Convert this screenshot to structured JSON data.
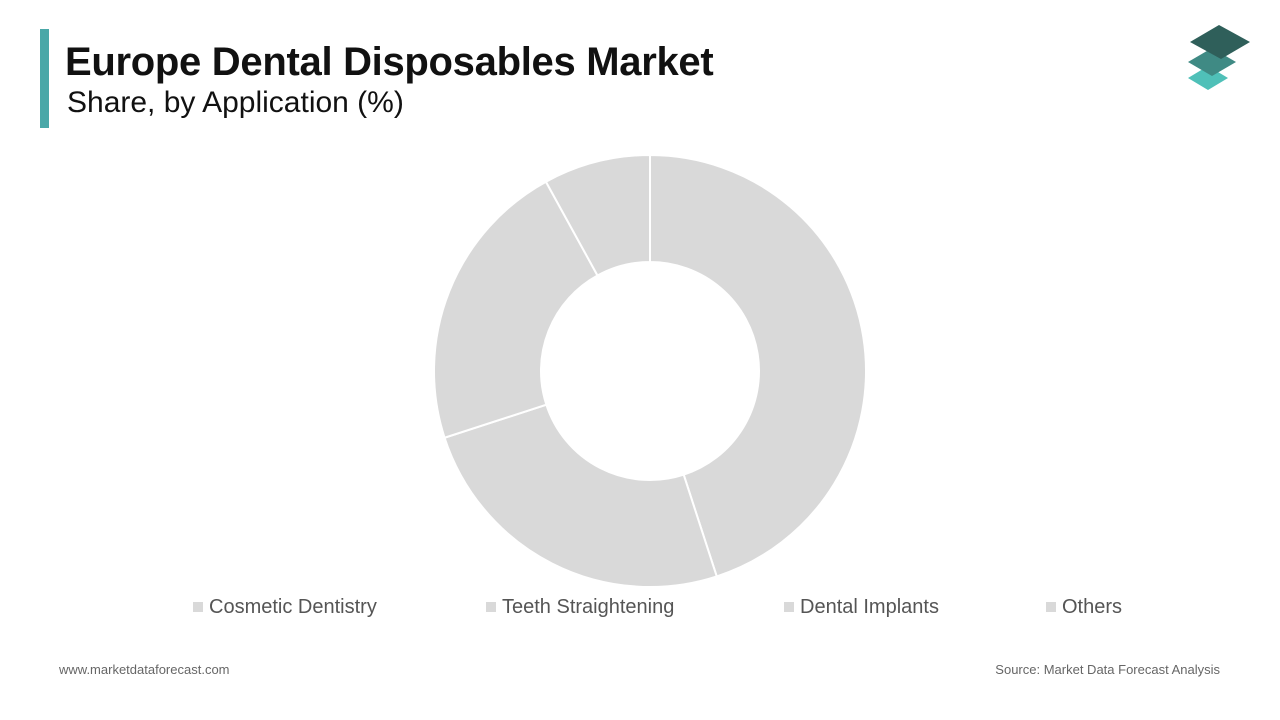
{
  "header": {
    "title": "Europe Dental Disposables Market",
    "subtitle": "Share, by Application (%)"
  },
  "colors": {
    "accent": "#4aa8a8",
    "slice": "#d9d9d9",
    "logo_dark": "#2f5f5a",
    "logo_mid": "#3f8a84",
    "logo_light": "#4fc0b8"
  },
  "chart_data": {
    "type": "pie",
    "variant": "donut",
    "categories": [
      "Cosmetic Dentistry",
      "Teeth Straightening",
      "Dental Implants",
      "Others"
    ],
    "values": [
      45,
      25,
      22,
      8
    ],
    "title": "Europe Dental Disposables Market",
    "subtitle": "Share, by Application (%)",
    "legend_position": "bottom",
    "data_labels": false
  },
  "footer": {
    "website": "www.marketdataforecast.com",
    "source": "Source: Market Data Forecast Analysis"
  }
}
